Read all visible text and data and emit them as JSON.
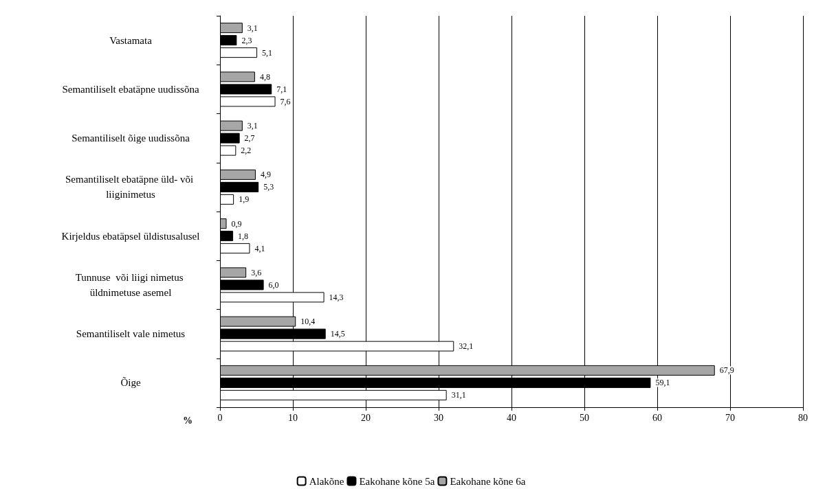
{
  "chart_data": {
    "type": "bar",
    "orientation": "horizontal",
    "xlabel": "%",
    "categories": [
      "Vastamata",
      "Semantiliselt ebatäpne uudissõna",
      "Semantiliselt õige uudissõna",
      "Semantiliselt ebatäpne üld- või liiginimetus",
      "Kirjeldus ebatäpsel üldistusalusel",
      "Tunnuse  või liigi nimetus üldnimetuse asemel",
      "Semantiliselt vale nimetus",
      "Õige"
    ],
    "series": [
      {
        "name": "Eakohane kõne 6a",
        "color": "#a6a6a6",
        "values": [
          3.1,
          4.8,
          3.1,
          4.9,
          0.9,
          3.6,
          10.4,
          67.9
        ],
        "value_labels": [
          "3,1",
          "4,8",
          "3,1",
          "4,9",
          "0,9",
          "3,6",
          "10,4",
          "67,9"
        ]
      },
      {
        "name": "Eakohane kõne 5a",
        "color": "#000000",
        "values": [
          2.3,
          7.1,
          2.7,
          5.3,
          1.8,
          6.0,
          14.5,
          59.1
        ],
        "value_labels": [
          "2,3",
          "7,1",
          "2,7",
          "5,3",
          "1,8",
          "6,0",
          "14,5",
          "59,1"
        ]
      },
      {
        "name": "Alakõne",
        "color": "#ffffff",
        "values": [
          5.1,
          7.6,
          2.2,
          1.9,
          4.1,
          14.3,
          32.1,
          31.1
        ],
        "value_labels": [
          "5,1",
          "7,6",
          "2,2",
          "1,9",
          "4,1",
          "14,3",
          "32,1",
          "31,1"
        ]
      }
    ],
    "xlim": [
      0,
      80
    ],
    "xticks": [
      0,
      10,
      20,
      30,
      40,
      50,
      60,
      70,
      80
    ],
    "grid": "x",
    "legend": "bottom"
  }
}
